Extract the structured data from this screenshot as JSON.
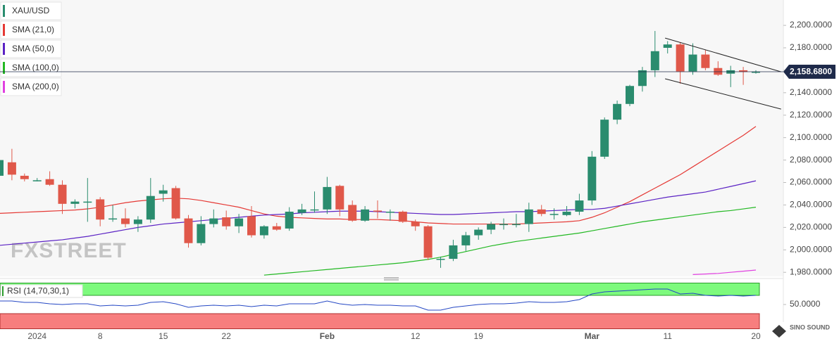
{
  "chart_data": {
    "type": "candlestick",
    "symbol": "XAU/USD",
    "color_up": "#2a8c6e",
    "color_down": "#e0584a",
    "categories": [
      null,
      null,
      null,
      "2024",
      null,
      null,
      null,
      null,
      "8",
      null,
      null,
      null,
      null,
      "15",
      null,
      null,
      null,
      null,
      "22",
      null,
      null,
      null,
      null,
      null,
      null,
      null,
      "Feb",
      null,
      null,
      null,
      null,
      null,
      null,
      "12",
      null,
      null,
      null,
      null,
      "19",
      null,
      null,
      null,
      null,
      null,
      null,
      null,
      null,
      "Mar",
      null,
      null,
      null,
      null,
      null,
      "11",
      null,
      null,
      null,
      null,
      null,
      null,
      "20"
    ],
    "open": [
      2066,
      2078,
      2066,
      2062,
      2063,
      2058,
      2041,
      2043,
      2045,
      2028,
      2028,
      2023,
      2027,
      2050,
      2055,
      2028,
      2006,
      2023,
      2029,
      2021,
      2030,
      2013,
      2021,
      2019,
      2033,
      2036,
      2036,
      2057,
      2040,
      2026,
      2035,
      2034,
      2034,
      2025,
      2021,
      1992,
      1992,
      2004,
      2013,
      2018,
      2023,
      2023,
      2023,
      2036,
      2032,
      2031,
      2034,
      2044,
      2083,
      2116,
      2130,
      2146,
      2160,
      2180,
      2183,
      2159,
      2174,
      2162,
      2157,
      2160,
      2158.6
    ],
    "high": [
      2085,
      2090,
      2068,
      2064,
      2070,
      2062,
      2045,
      2064,
      2047,
      2040,
      2037,
      2030,
      2064,
      2058,
      2057,
      2031,
      2030,
      2036,
      2035,
      2032,
      2039,
      2022,
      2024,
      2038,
      2041,
      2052,
      2065,
      2058,
      2044,
      2039,
      2044,
      2036,
      2035,
      2027,
      2022,
      1994,
      2009,
      2016,
      2020,
      2025,
      2028,
      2032,
      2042,
      2040,
      2037,
      2039,
      2050,
      2088,
      2118,
      2133,
      2147,
      2163,
      2195,
      2186,
      2185,
      2184,
      2178,
      2168,
      2164,
      2163,
      2160
    ],
    "low": [
      2062,
      2062,
      2061,
      2061,
      2057,
      2032,
      2037,
      2025,
      2021,
      2025,
      2020,
      2016,
      2024,
      2043,
      2027,
      2002,
      2004,
      2020,
      2018,
      2015,
      2011,
      2010,
      2017,
      2017,
      2031,
      2033,
      2032,
      2030,
      2025,
      2025,
      2028,
      2026,
      2024,
      2017,
      1991,
      1984,
      1990,
      1999,
      2009,
      2014,
      2018,
      2020,
      2016,
      2030,
      2027,
      2030,
      2031,
      2040,
      2081,
      2112,
      2128,
      2141,
      2154,
      2175,
      2148,
      2156,
      2160,
      2155,
      2145,
      2147,
      2157
    ],
    "close": [
      2080,
      2067,
      2063,
      2062,
      2058,
      2041,
      2043,
      2043,
      2027,
      2028,
      2023,
      2027,
      2048,
      2053,
      2028,
      2006,
      2023,
      2028,
      2021,
      2028,
      2013,
      2021,
      2018,
      2034,
      2036,
      2036,
      2056,
      2036,
      2026,
      2036,
      2034,
      2034,
      2025,
      2021,
      1993,
      1992,
      2004,
      2013,
      2018,
      2023,
      2023,
      2023,
      2036,
      2032,
      2032,
      2034,
      2044,
      2083,
      2116,
      2130,
      2146,
      2160,
      2177,
      2183,
      2159,
      2174,
      2162,
      2156,
      2160,
      2158.6,
      2158.68
    ],
    "series": [
      {
        "name": "SMA (21,0)",
        "color": "#e53935",
        "values": [
          2032.5,
          2033,
          2033.5,
          2034,
          2034.5,
          2035,
          2035.5,
          2036.5,
          2038,
          2040,
          2042,
          2043.5,
          2044.5,
          2045.5,
          2046,
          2045.5,
          2044,
          2042,
          2040,
          2038,
          2035,
          2032,
          2030,
          2029,
          2028.5,
          2028,
          2027.5,
          2027.5,
          2027,
          2027,
          2027,
          2026.5,
          2026,
          2025,
          2024,
          2023.5,
          2023,
          2023,
          2023,
          2023,
          2023,
          2023,
          2023.5,
          2024,
          2024.5,
          2025,
          2026,
          2029,
          2033,
          2038,
          2043,
          2049,
          2055,
          2061,
          2067,
          2074,
          2081,
          2088,
          2095,
          2102,
          2110
        ]
      },
      {
        "name": "SMA (50,0)",
        "color": "#5b22c4",
        "values": [
          2004,
          2005,
          2006,
          2007,
          2008,
          2009,
          2010.5,
          2012,
          2014,
          2016,
          2018,
          2020,
          2021.5,
          2023,
          2024,
          2025,
          2026,
          2027,
          2028,
          2029,
          2030,
          2031,
          2031.5,
          2032,
          2033,
          2033.5,
          2034,
          2034.5,
          2034.5,
          2034.5,
          2034,
          2033.5,
          2033,
          2032.5,
          2032,
          2031.5,
          2031.5,
          2032,
          2032.5,
          2033,
          2033.5,
          2034,
          2034,
          2034.5,
          2035,
          2035.5,
          2036,
          2036,
          2037,
          2039,
          2041,
          2043,
          2045,
          2047,
          2048.5,
          2050,
          2051.5,
          2054,
          2056.5,
          2059,
          2061.5
        ]
      },
      {
        "name": "SMA (100,0)",
        "color": "#22b822",
        "values": [
          null,
          null,
          null,
          null,
          null,
          null,
          null,
          null,
          null,
          null,
          null,
          null,
          null,
          null,
          null,
          null,
          null,
          null,
          null,
          null,
          null,
          1977.5,
          1978.5,
          1979.5,
          1980.5,
          1981.5,
          1982.5,
          1983.5,
          1984.5,
          1985.5,
          1986.5,
          1987.5,
          1988.5,
          1990,
          1991.5,
          1993.5,
          1996,
          1998.5,
          2001,
          2003.5,
          2005.5,
          2007.5,
          2009,
          2010.5,
          2012,
          2013.5,
          2015,
          2017,
          2019,
          2021,
          2023,
          2025,
          2026.5,
          2028,
          2029.5,
          2031,
          2032.5,
          2034,
          2035,
          2036.5,
          2038
        ]
      },
      {
        "name": "SMA (200,0)",
        "color": "#e040e0",
        "values": [
          null,
          null,
          null,
          null,
          null,
          null,
          null,
          null,
          null,
          null,
          null,
          null,
          null,
          null,
          null,
          null,
          null,
          null,
          null,
          null,
          null,
          null,
          null,
          null,
          null,
          null,
          null,
          null,
          null,
          null,
          null,
          null,
          null,
          null,
          null,
          null,
          null,
          null,
          null,
          null,
          null,
          null,
          null,
          null,
          null,
          null,
          null,
          null,
          null,
          null,
          null,
          null,
          null,
          null,
          null,
          1978,
          1978.5,
          1979,
          1980,
          1981,
          1982
        ]
      }
    ],
    "ylim": [
      1977,
      2222.6
    ],
    "yticks": [
      {
        "value": 1980,
        "label": "1,980.0000"
      },
      {
        "value": 2000,
        "label": "2,000.0000"
      },
      {
        "value": 2020,
        "label": "2,020.0000"
      },
      {
        "value": 2040,
        "label": "2,040.0000"
      },
      {
        "value": 2060,
        "label": "2,060.0000"
      },
      {
        "value": 2080,
        "label": "2,080.0000"
      },
      {
        "value": 2100,
        "label": "2,100.0000"
      },
      {
        "value": 2120,
        "label": "2,120.0000"
      },
      {
        "value": 2140,
        "label": "2,140.0000"
      },
      {
        "value": 2160,
        "label": "2,160.0000"
      },
      {
        "value": 2180,
        "label": "2,180.0000"
      },
      {
        "value": 2200,
        "label": "2,200.0000"
      }
    ],
    "grid": false,
    "last_price_label": "2,158.6800",
    "trendlines": [
      {
        "x": [
          52.8,
          62
        ],
        "y": [
          2188.7,
          2158.6
        ]
      },
      {
        "x": [
          52.8,
          62
        ],
        "y": [
          2152.4,
          2125.4
        ]
      }
    ],
    "watermark": "FXSTREET",
    "logo": "SINO SOUND",
    "indicator": {
      "title": "RSI (14,70,30,1)",
      "color": "#2447c4",
      "overbought": 70,
      "oversold": 30,
      "ylim": [
        0,
        100
      ],
      "yticks": [
        {
          "value": 50,
          "label": "50.0000"
        }
      ],
      "values": [
        57.7,
        57.7,
        54.6,
        54.6,
        51.5,
        50,
        51.5,
        51.5,
        46.9,
        48.5,
        46.9,
        48.5,
        54.6,
        56.2,
        51.5,
        43.8,
        46.9,
        48.5,
        46.9,
        48.5,
        45.4,
        48.5,
        46.9,
        51.5,
        51.5,
        51.5,
        57.7,
        51.5,
        48.5,
        50,
        48.5,
        48.5,
        46.9,
        46.9,
        37.7,
        37.7,
        43.8,
        46.9,
        50,
        51.5,
        51.5,
        53.1,
        56.2,
        54.6,
        54.6,
        56.2,
        60.8,
        73.1,
        77.7,
        79.2,
        80.8,
        82.3,
        83.8,
        83.8,
        73.1,
        74.6,
        70,
        68.5,
        70,
        68.5,
        70
      ]
    }
  }
}
